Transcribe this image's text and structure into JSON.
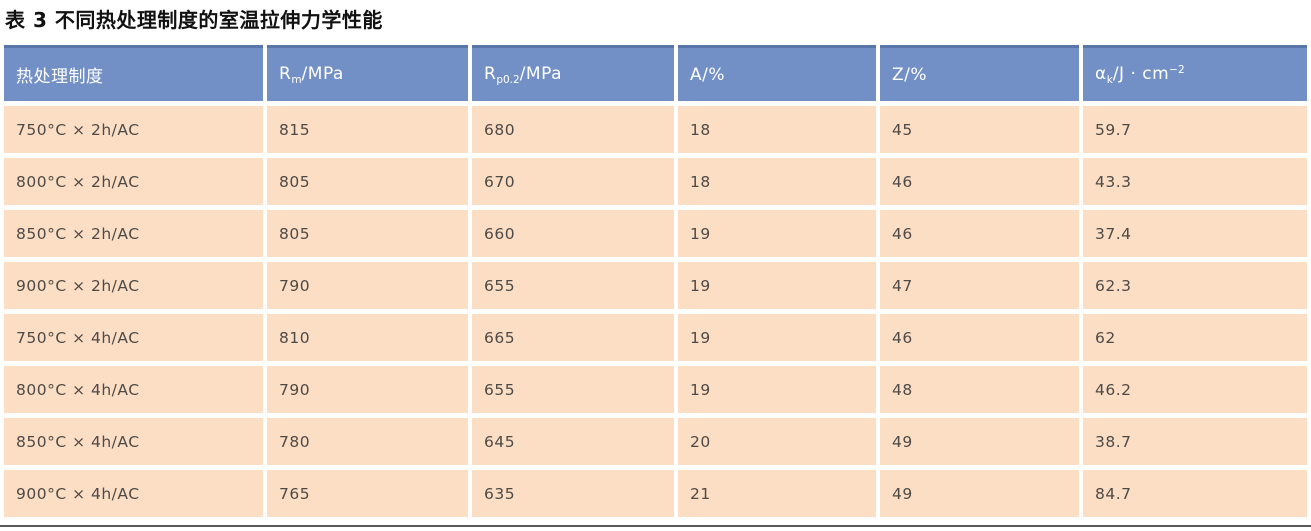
{
  "title": "表 3 不同热处理制度的室温拉伸力学性能",
  "colors": {
    "header_bg": "#7290c6",
    "header_top": "#5a76a9",
    "row_bg": "#fbdec4",
    "cell_text": "#4e4a47",
    "header_text": "#ffffff",
    "rule": "#595959",
    "title_text": "#111111"
  },
  "table": {
    "headers": [
      {
        "text": "热处理制度"
      },
      {
        "pre": "R",
        "sub": "m",
        "post": "/MPa"
      },
      {
        "pre": "R",
        "sub": "p0.2",
        "post": "/MPa"
      },
      {
        "pre": "A/%"
      },
      {
        "pre": "Z/%"
      },
      {
        "pre": "α",
        "sub": "k",
        "post": "/J · cm",
        "sup": "−2"
      }
    ],
    "rows": [
      [
        "750°C × 2h/AC",
        "815",
        "680",
        "18",
        "45",
        "59.7"
      ],
      [
        "800°C × 2h/AC",
        "805",
        "670",
        "18",
        "46",
        "43.3"
      ],
      [
        "850°C × 2h/AC",
        "805",
        "660",
        "19",
        "46",
        "37.4"
      ],
      [
        "900°C × 2h/AC",
        "790",
        "655",
        "19",
        "47",
        "62.3"
      ],
      [
        "750°C × 4h/AC",
        "810",
        "665",
        "19",
        "46",
        "62"
      ],
      [
        "800°C × 4h/AC",
        "790",
        "655",
        "19",
        "48",
        "46.2"
      ],
      [
        "850°C × 4h/AC",
        "780",
        "645",
        "20",
        "49",
        "38.7"
      ],
      [
        "900°C × 4h/AC",
        "765",
        "635",
        "21",
        "49",
        "84.7"
      ]
    ]
  }
}
